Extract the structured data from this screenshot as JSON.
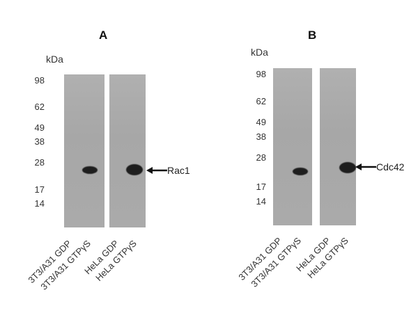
{
  "panels": [
    {
      "letter": "A",
      "unit": "kDa",
      "markers": [
        "98",
        "62",
        "49",
        "38",
        "28",
        "17",
        "14"
      ],
      "lanes": [
        "3T3/A31 GDP",
        "3T3/A31 GTPγS",
        "HeLa GDP",
        "HeLa GTPγS"
      ],
      "target": "Rac1"
    },
    {
      "letter": "B",
      "unit": "kDa",
      "markers": [
        "98",
        "62",
        "49",
        "38",
        "28",
        "17",
        "14"
      ],
      "lanes": [
        "3T3/A31 GDP",
        "3T3/A31 GTPγS",
        "HeLa GDP",
        "HeLa GTPγS"
      ],
      "target": "Cdc42"
    }
  ]
}
